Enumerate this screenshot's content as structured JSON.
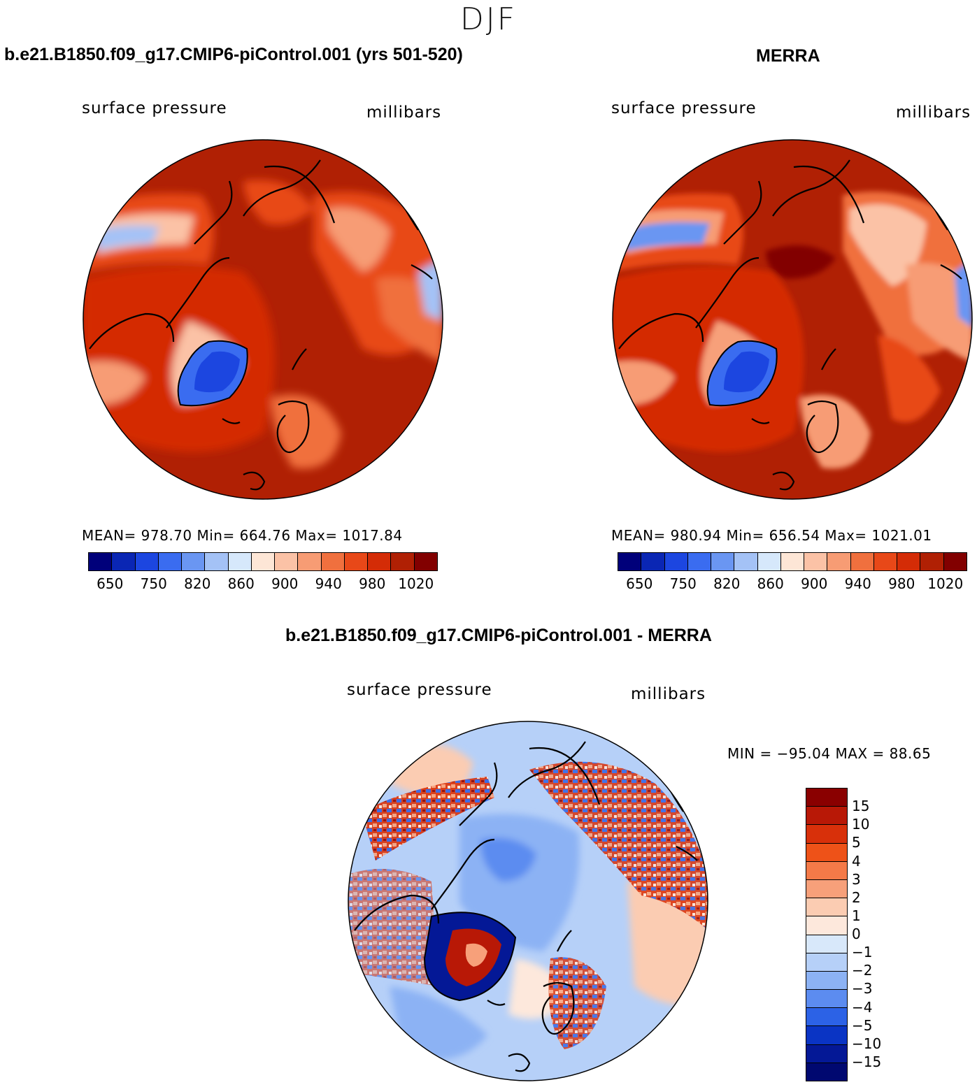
{
  "season": "DJF",
  "panels": {
    "model": {
      "title": "b.e21.B1850.f09_g17.CMIP6-piControl.001 (yrs 501-520)",
      "variable": "surface pressure",
      "units": "millibars",
      "stats": "MEAN= 978.70   Min= 664.76   Max= 1017.84"
    },
    "obs": {
      "title": "MERRA",
      "variable": "surface pressure",
      "units": "millibars",
      "stats": "MEAN= 980.94   Min= 656.54   Max= 1021.01"
    },
    "diff": {
      "title": "b.e21.B1850.f09_g17.CMIP6-piControl.001 - MERRA",
      "variable": "surface pressure",
      "units": "millibars",
      "stats": "MIN = −95.04 MAX =  88.65"
    }
  },
  "colorbar_main": {
    "labels": [
      "650",
      "750",
      "820",
      "860",
      "900",
      "940",
      "980",
      "1020"
    ],
    "colors": [
      "#00007a",
      "#0a26b4",
      "#1c46e0",
      "#3a6cf0",
      "#6a96f2",
      "#a4c2f6",
      "#d6e8fb",
      "#fde6d6",
      "#fbc2a6",
      "#f79c74",
      "#f0703e",
      "#e84818",
      "#d42c06",
      "#b02004",
      "#820000"
    ]
  },
  "colorbar_diff": {
    "labels": [
      "15",
      "10",
      "5",
      "4",
      "3",
      "2",
      "1",
      "0",
      "−1",
      "−2",
      "−3",
      "−4",
      "−5",
      "−10",
      "−15"
    ],
    "colors": [
      "#8a0000",
      "#b81806",
      "#d8300a",
      "#ee5218",
      "#f47a48",
      "#f7a07a",
      "#fbccb2",
      "#fde8dc",
      "#d8e8fa",
      "#b6d0f8",
      "#8cb2f4",
      "#5c8cf0",
      "#2c62e6",
      "#0a34c4",
      "#041896",
      "#000870"
    ]
  }
}
